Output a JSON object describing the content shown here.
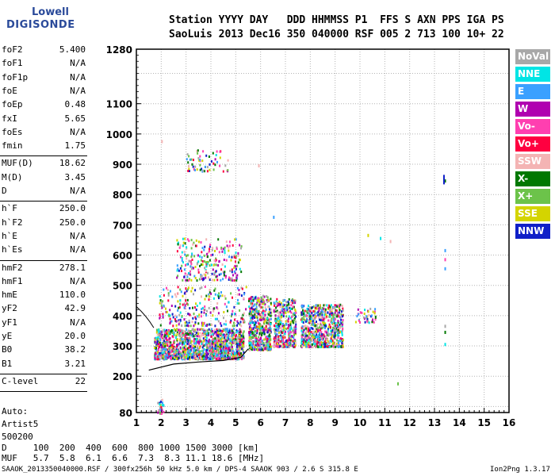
{
  "logo": {
    "line1": "Lowell",
    "line2": "DIGISONDE"
  },
  "header": {
    "line1": "Station YYYY DAY   DDD HHMMSS P1  FFS S AXN PPS IGA PS",
    "line2": "SaoLuis 2013 Dec16 350 040000 RSF 005 2 713 100 10+ 22"
  },
  "parameters": [
    {
      "k": "foF2",
      "v": "5.400"
    },
    {
      "k": "foF1",
      "v": "N/A"
    },
    {
      "k": "foF1p",
      "v": "N/A"
    },
    {
      "k": "foE",
      "v": "N/A"
    },
    {
      "k": "foEp",
      "v": "0.48"
    },
    {
      "k": "fxI",
      "v": "5.65"
    },
    {
      "k": "foEs",
      "v": "N/A"
    },
    {
      "k": "fmin",
      "v": "1.75"
    },
    {
      "k": "MUF(D)",
      "v": "18.62"
    },
    {
      "k": "M(D)",
      "v": "3.45"
    },
    {
      "k": "D",
      "v": "N/A"
    },
    {
      "k": "h`F",
      "v": "250.0"
    },
    {
      "k": "h`F2",
      "v": "250.0"
    },
    {
      "k": "h`E",
      "v": "N/A"
    },
    {
      "k": "h`Es",
      "v": "N/A"
    },
    {
      "k": "hmF2",
      "v": "278.1"
    },
    {
      "k": "hmF1",
      "v": "N/A"
    },
    {
      "k": "hmE",
      "v": "110.0"
    },
    {
      "k": "yF2",
      "v": "42.9"
    },
    {
      "k": "yF1",
      "v": "N/A"
    },
    {
      "k": "yE",
      "v": "20.0"
    },
    {
      "k": "B0",
      "v": "38.2"
    },
    {
      "k": "B1",
      "v": "3.21"
    },
    {
      "k": "C-level",
      "v": "22"
    }
  ],
  "autoscale": {
    "l1": "Auto:",
    "l2": "Artist5",
    "l3": "500200"
  },
  "legend": [
    {
      "name": "NoVal",
      "color": "#a8a8a8"
    },
    {
      "name": "NNE",
      "color": "#00e5e5"
    },
    {
      "name": "E",
      "color": "#3aa0ff"
    },
    {
      "name": "W",
      "color": "#b000b0"
    },
    {
      "name": "Vo-",
      "color": "#ff3fb0"
    },
    {
      "name": "Vo+",
      "color": "#ff0040"
    },
    {
      "name": "SSW",
      "color": "#f4b4b4"
    },
    {
      "name": "X-",
      "color": "#007800"
    },
    {
      "name": "X+",
      "color": "#6cc34a"
    },
    {
      "name": "SSE",
      "color": "#d4d400"
    },
    {
      "name": "NNW",
      "color": "#1020c8"
    }
  ],
  "footer": {
    "line1": "D     100  200  400  600  800 1000 1500 3000 [km]",
    "line2": "MUF   5.7  5.8  6.1  6.6  7.3  8.3 11.1 18.6 [MHz]",
    "line3": "SAAOK_2013350040000.RSF / 300fx256h 50 kHz 5.0 km / DPS-4 SAAOK 903 / 2.6 S 315.8 E",
    "version": "Ion2Png 1.3.17"
  },
  "chart_data": {
    "type": "scatter",
    "xlim": [
      1,
      16
    ],
    "ylim": [
      80,
      1280
    ],
    "x_ticks": [
      "1",
      "2",
      "3",
      "4",
      "5",
      "6",
      "7",
      "8",
      "9",
      "10",
      "11",
      "12",
      "13",
      "14",
      "15",
      "16"
    ],
    "y_ticks": [
      "80",
      "200",
      "300",
      "400",
      "500",
      "600",
      "700",
      "800",
      "900",
      "1000",
      "1100",
      "1280"
    ],
    "grid": true,
    "legend_position": "right",
    "clusters": [
      {
        "x": [
          1.7,
          5.3
        ],
        "y": [
          260,
          360
        ],
        "n": 1500
      },
      {
        "x": [
          5.5,
          6.4
        ],
        "y": [
          290,
          470
        ],
        "n": 500
      },
      {
        "x": [
          6.5,
          7.4
        ],
        "y": [
          300,
          460
        ],
        "n": 400
      },
      {
        "x": [
          7.6,
          9.3
        ],
        "y": [
          300,
          440
        ],
        "n": 700
      },
      {
        "x": [
          2.6,
          5.2
        ],
        "y": [
          520,
          660
        ],
        "n": 250
      },
      {
        "x": [
          3.0,
          4.8
        ],
        "y": [
          880,
          950
        ],
        "n": 60
      },
      {
        "x": [
          1.9,
          5.4
        ],
        "y": [
          370,
          500
        ],
        "n": 250
      },
      {
        "x": [
          9.8,
          10.6
        ],
        "y": [
          380,
          430
        ],
        "n": 40
      },
      {
        "x": [
          1.8,
          2.1
        ],
        "y": [
          80,
          130
        ],
        "n": 25
      }
    ],
    "trace": [
      [
        1.5,
        220
      ],
      [
        2.5,
        240
      ],
      [
        3.5,
        247
      ],
      [
        4.5,
        252
      ],
      [
        5.2,
        262
      ],
      [
        5.5,
        290
      ]
    ]
  }
}
